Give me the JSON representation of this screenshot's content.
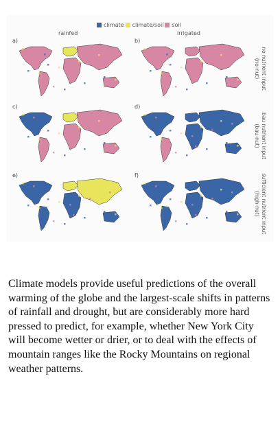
{
  "figure": {
    "legend": {
      "items": [
        {
          "label": "climate",
          "color": "#3a66a8"
        },
        {
          "label": "climate/soil",
          "color": "#e8e45c"
        },
        {
          "label": "soil",
          "color": "#d787a4"
        }
      ]
    },
    "columns": {
      "left": "rainfed",
      "right": "irrigated"
    },
    "rows": [
      {
        "label": "no nutrient input",
        "sub": "(no-nut)"
      },
      {
        "label": "bau nutrient input",
        "sub": "(bau-nut)"
      },
      {
        "label": "sufficient nutrient input",
        "sub": "(high-nut)"
      }
    ],
    "panels": [
      "a)",
      "b)",
      "c)",
      "d)",
      "e)",
      "f)"
    ]
  },
  "caption": {
    "text": "Climate models provide useful predictions of the overall warming of the globe and the largest-scale shifts in patterns of rainfall and drought, but are considerably more hard pressed to predict, for example, whether New York City will become wetter or drier, or to deal with the effects of mountain ranges like the Rocky Mountains on regional weather patterns."
  }
}
